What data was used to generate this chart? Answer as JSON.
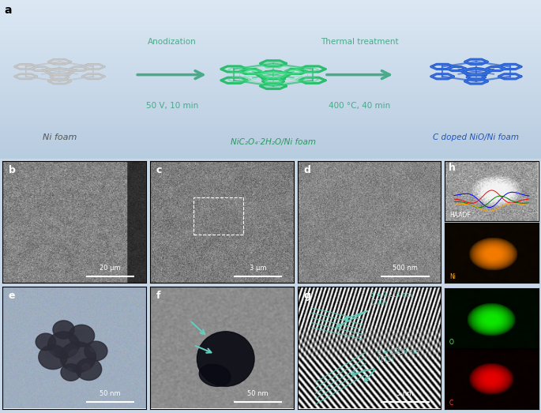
{
  "figure_size": [
    6.85,
    5.23
  ],
  "dpi": 100,
  "bg_top": "#dce6f0",
  "bg_bottom": "#b0c4d8",
  "panel_a": {
    "label": "a",
    "arrow_color": "#4aaa8a",
    "arrow1_label_top": "Anodization",
    "arrow1_label_bot": "50 V, 10 min",
    "arrow2_label_top": "Thermal treatment",
    "arrow2_label_bot": "400 °C, 40 min",
    "label1": "Ni foam",
    "label2": "NiC₂O₄·2H₂O/Ni foam",
    "label3": "C doped NiO/Ni foam",
    "label1_color": "#555555",
    "label2_color": "#2a9960",
    "label3_color": "#2255bb",
    "foam_gray": "#bbbbbb",
    "foam_green": "#33bb66",
    "foam_blue": "#3366dd"
  },
  "scale_color": "white",
  "label_fontsize": 9,
  "scale_fontsize": 6,
  "annotation_color": "#66ccbb"
}
